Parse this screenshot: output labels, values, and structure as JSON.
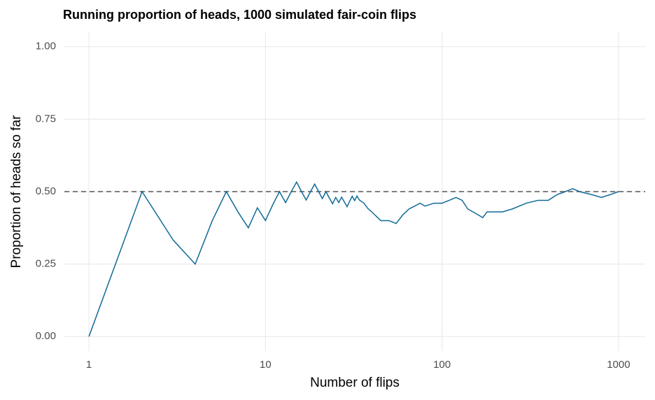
{
  "chart_data": {
    "type": "line",
    "title": "Running proportion of heads, 1000 simulated fair-coin flips",
    "x_label": "Number of flips",
    "y_label": "Proportion of heads so far",
    "x_scale": "log",
    "x": [
      1,
      2,
      3,
      4,
      5,
      6,
      7,
      8,
      9,
      10,
      11,
      12,
      13,
      14,
      15,
      16,
      17,
      18,
      19,
      20,
      21,
      22,
      23,
      24,
      25,
      26,
      27,
      28,
      29,
      30,
      31,
      32,
      33,
      34,
      36,
      38,
      40,
      45,
      50,
      55,
      60,
      65,
      70,
      75,
      80,
      90,
      100,
      110,
      120,
      130,
      140,
      160,
      170,
      180,
      200,
      220,
      250,
      300,
      350,
      400,
      450,
      500,
      550,
      600,
      700,
      800,
      900,
      1000
    ],
    "series": [
      {
        "name": "Running proportion",
        "color": "#106a96",
        "values": [
          0,
          0.5,
          0.333,
          0.25,
          0.4,
          0.5,
          0.429,
          0.375,
          0.444,
          0.4,
          0.455,
          0.5,
          0.462,
          0.5,
          0.533,
          0.5,
          0.471,
          0.5,
          0.526,
          0.5,
          0.476,
          0.5,
          0.478,
          0.458,
          0.48,
          0.462,
          0.481,
          0.464,
          0.448,
          0.467,
          0.484,
          0.469,
          0.485,
          0.471,
          0.461,
          0.442,
          0.43,
          0.4,
          0.4,
          0.39,
          0.42,
          0.44,
          0.45,
          0.46,
          0.45,
          0.46,
          0.46,
          0.47,
          0.48,
          0.47,
          0.44,
          0.42,
          0.41,
          0.43,
          0.43,
          0.43,
          0.44,
          0.46,
          0.47,
          0.47,
          0.49,
          0.5,
          0.51,
          0.5,
          0.49,
          0.48,
          0.49,
          0.5
        ]
      }
    ],
    "hline": 0.5,
    "xlim": [
      0.726,
      1416
    ],
    "xticks": [
      1,
      10,
      100,
      1000
    ],
    "ylim": [
      -0.05,
      1.05
    ],
    "yticks": [
      {
        "value": 0,
        "label": "0.00"
      },
      {
        "value": 0.25,
        "label": "0.25"
      },
      {
        "value": 0.5,
        "label": "0.50"
      },
      {
        "value": 0.75,
        "label": "0.75"
      },
      {
        "value": 1,
        "label": "1.00"
      }
    ],
    "grid": true
  }
}
